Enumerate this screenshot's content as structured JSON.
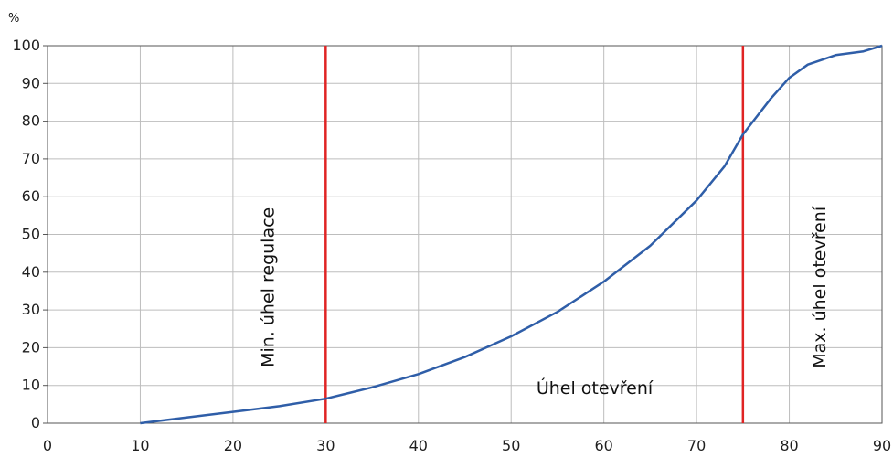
{
  "chart_data": {
    "type": "line",
    "title": "",
    "xlabel": "",
    "ylabel": "",
    "y_unit": "%",
    "xlim": [
      0,
      90
    ],
    "ylim": [
      0,
      100
    ],
    "grid": true,
    "x_ticks": [
      0,
      10,
      20,
      30,
      40,
      50,
      60,
      70,
      80,
      90
    ],
    "y_ticks": [
      0,
      10,
      20,
      30,
      40,
      50,
      60,
      70,
      80,
      90,
      100
    ],
    "series": [
      {
        "color": "#2f5ea8",
        "x": [
          10,
          15,
          20,
          25,
          30,
          35,
          40,
          45,
          50,
          55,
          60,
          65,
          70,
          73,
          75,
          78,
          80,
          82,
          85,
          88,
          90
        ],
        "y": [
          0,
          1.5,
          3,
          4.5,
          6.5,
          9.5,
          13,
          17.5,
          23,
          29.5,
          37.5,
          47,
          59,
          68,
          76.5,
          86,
          91.5,
          95,
          97.5,
          98.5,
          100
        ]
      }
    ],
    "vlines": [
      {
        "x": 30,
        "color": "#e02424",
        "label": "Min. úhel regulace"
      },
      {
        "x": 75,
        "color": "#e02424",
        "label": "Max. úhel otevření"
      }
    ],
    "annotations": [
      {
        "text": "Úhel otevření",
        "x": 59,
        "y": 9.5
      }
    ]
  },
  "colors": {
    "grid": "#bdbdbd",
    "axis": "#555555"
  }
}
